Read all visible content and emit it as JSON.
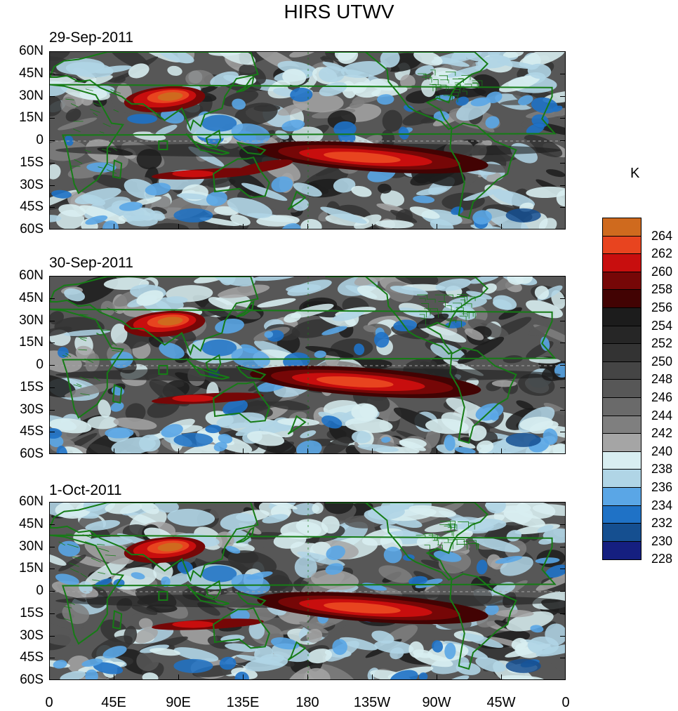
{
  "title": "HIRS UTWV",
  "panels": [
    {
      "date": "29-Sep-2011"
    },
    {
      "date": "30-Sep-2011"
    },
    {
      "date": "1-Oct-2011"
    }
  ],
  "lat_labels": [
    "60N",
    "45N",
    "30N",
    "15N",
    "0",
    "15S",
    "30S",
    "45S",
    "60S"
  ],
  "lon_labels": [
    "0",
    "45E",
    "90E",
    "135E",
    "180",
    "135W",
    "90W",
    "45W",
    "0"
  ],
  "colorbar": {
    "unit": "K",
    "levels": [
      "228",
      "230",
      "232",
      "234",
      "236",
      "238",
      "240",
      "242",
      "244",
      "246",
      "248",
      "250",
      "252",
      "254",
      "256",
      "258",
      "260",
      "262",
      "264"
    ],
    "colors": [
      "#cf6a1e",
      "#e8441f",
      "#c80e0e",
      "#760707",
      "#420303",
      "#1c1c1c",
      "#262626",
      "#333333",
      "#454545",
      "#575757",
      "#6a6a6a",
      "#7f7f7f",
      "#a5a5a5",
      "#d8eef1",
      "#b0d5e6",
      "#5aa6e6",
      "#1f72c6",
      "#154f90",
      "#151f80"
    ]
  },
  "coastline_color": "#167c16"
}
